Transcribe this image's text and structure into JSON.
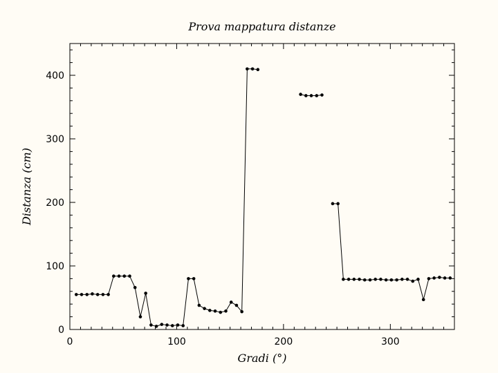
{
  "chart_data": {
    "type": "line",
    "title": "Prova mappatura distanze",
    "xlabel": "Gradi (°)",
    "ylabel": "Distanza (cm)",
    "xlim": [
      0,
      360
    ],
    "ylim": [
      0,
      450
    ],
    "xticks": [
      0,
      100,
      200,
      300
    ],
    "yticks": [
      0,
      100,
      200,
      300,
      400
    ],
    "grid": false,
    "colors": {
      "background": "#fffcf5",
      "line": "#000000",
      "marker": "#000000"
    },
    "series": [
      {
        "x": [
          6,
          11,
          16,
          21,
          26,
          31,
          36,
          41,
          46,
          51,
          56,
          61,
          66,
          71,
          76,
          81,
          86,
          91,
          96,
          101,
          106,
          111,
          116,
          121,
          126,
          131,
          136,
          141,
          146,
          151,
          156,
          161,
          166,
          171,
          176,
          181,
          186,
          191,
          196,
          201,
          206,
          211,
          216,
          221,
          226,
          231,
          236,
          241,
          246,
          251,
          256,
          261,
          266,
          271,
          276,
          281,
          286,
          291,
          296,
          301,
          306,
          311,
          316,
          321,
          326,
          331,
          336,
          341,
          346,
          351,
          356,
          361
        ],
        "y": [
          55,
          55,
          55,
          56,
          55,
          55,
          55,
          84,
          84,
          84,
          84,
          66,
          20,
          57,
          7,
          5,
          8,
          7,
          6,
          7,
          6,
          80,
          80,
          38,
          33,
          30,
          29,
          27,
          29,
          43,
          38,
          28,
          410,
          410,
          409,
          null,
          null,
          null,
          null,
          null,
          null,
          null,
          370,
          368,
          368,
          368,
          369,
          null,
          198,
          198,
          79,
          79,
          79,
          79,
          78,
          78,
          79,
          79,
          78,
          78,
          78,
          79,
          79,
          76,
          79,
          47,
          80,
          81,
          82,
          81,
          81,
          81
        ]
      }
    ]
  }
}
